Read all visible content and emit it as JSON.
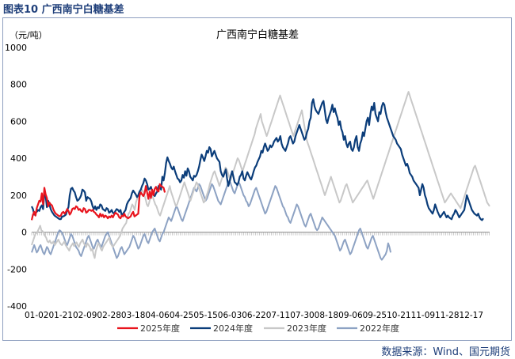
{
  "figure_label": "图表10  广西南宁白糖基差",
  "source_note": "数据来源：Wind、国元期货",
  "colors": {
    "caption": "#1f3f7a",
    "frame": "#8e9fbf",
    "axis": "#888888",
    "tick_text": "#000000"
  },
  "chart_data": {
    "type": "line",
    "title": "广西南宁白糖基差",
    "ylabel": "（元/吨）",
    "xlabel": "",
    "ylim": [
      -400,
      1000
    ],
    "yticks": [
      -400,
      -200,
      0,
      200,
      400,
      600,
      800,
      1000
    ],
    "x_tick_labels": [
      "01-02",
      "01-21",
      "02-09",
      "02-28",
      "03-18",
      "04-06",
      "04-25",
      "05-15",
      "06-03",
      "06-22",
      "07-11",
      "07-30",
      "08-18",
      "09-06",
      "09-25",
      "10-21",
      "11-09",
      "11-28",
      "12-17"
    ],
    "x_tick_text": "01-0201-2102-0902-2803-1804-0604-2505-1506-0306-2207-1107-3008-1809-0609-2510-2111-0911-2812-17",
    "grid": false,
    "legend_position": "bottom",
    "series": [
      {
        "name": "2025年度",
        "color": "#e8141d",
        "width": 2.2,
        "values": [
          65,
          95,
          110,
          90,
          130,
          150,
          170,
          165,
          210,
          150,
          240,
          205,
          185,
          140,
          160,
          150,
          145,
          125,
          110,
          100,
          95,
          90,
          85,
          90,
          105,
          110,
          100,
          110,
          125,
          115,
          95,
          105,
          125,
          130,
          125,
          140,
          135,
          120,
          125,
          115,
          110,
          130,
          125,
          105,
          110,
          120,
          120,
          115,
          120,
          110,
          105,
          95,
          90,
          80,
          100,
          85,
          95,
          80,
          90,
          85,
          75,
          85,
          80,
          90,
          80,
          95,
          105,
          100,
          95,
          80,
          75,
          90,
          85,
          100,
          85,
          80,
          75,
          80,
          85,
          100,
          110,
          85,
          90,
          95,
          100,
          200,
          215,
          205,
          195,
          210,
          250,
          215,
          180,
          220,
          185,
          230,
          200,
          235,
          245,
          225,
          220,
          260,
          250,
          245,
          240,
          215
        ]
      },
      {
        "name": "2024年度",
        "color": "#0b3d7a",
        "width": 2.2,
        "values": [
          140,
          125,
          95,
          105,
          110,
          120,
          115,
          135,
          145,
          125,
          210,
          195,
          135,
          170,
          150,
          125,
          110,
          100,
          90,
          85,
          80,
          75,
          70,
          70,
          85,
          85,
          90,
          95,
          120,
          135,
          200,
          235,
          240,
          225,
          215,
          190,
          170,
          175,
          185,
          200,
          230,
          225,
          215,
          170,
          190,
          185,
          180,
          165,
          140,
          125,
          140,
          120,
          135,
          130,
          150,
          145,
          125,
          120,
          115,
          130,
          125,
          105,
          110,
          120,
          105,
          100,
          115,
          125,
          120,
          110,
          120,
          90,
          100,
          110,
          120,
          150,
          165,
          175,
          185,
          210,
          225,
          215,
          205,
          190,
          200,
          220,
          230,
          250,
          265,
          290,
          280,
          260,
          230,
          235,
          245,
          220,
          205,
          195,
          210,
          220,
          250,
          240,
          230,
          300,
          280,
          320,
          375,
          405,
          385,
          370,
          350,
          340,
          355,
          330,
          310,
          290,
          285,
          270,
          280,
          310,
          295,
          330,
          305,
          345,
          330,
          300,
          290,
          280,
          305,
          300,
          310,
          330,
          355,
          390,
          420,
          405,
          385,
          410,
          440,
          430,
          460,
          450,
          410,
          425,
          440,
          420,
          400,
          390,
          380,
          330,
          310,
          300,
          320,
          340,
          290,
          250,
          275,
          305,
          330,
          300,
          270,
          265,
          255,
          270,
          300,
          310,
          330,
          290,
          280,
          305,
          325,
          310,
          295,
          285,
          305,
          330,
          350,
          360,
          380,
          395,
          410,
          440,
          430,
          460,
          480,
          460,
          440,
          450,
          470,
          460,
          470,
          490,
          500,
          510,
          490,
          500,
          520,
          480,
          460,
          450,
          440,
          460,
          480,
          510,
          520,
          500,
          480,
          490,
          520,
          540,
          560,
          580,
          560,
          540,
          520,
          500,
          510,
          540,
          560,
          600,
          620,
          700,
          720,
          680,
          660,
          650,
          640,
          660,
          680,
          700,
          710,
          660,
          610,
          590,
          620,
          640,
          660,
          690,
          650,
          670,
          640,
          620,
          580,
          600,
          560,
          540,
          500,
          520,
          480,
          460,
          480,
          490,
          450,
          440,
          460,
          500,
          520,
          460,
          440,
          480,
          500,
          540,
          520,
          560,
          600,
          620,
          580,
          640,
          680,
          660,
          700,
          640,
          620,
          600,
          650,
          640,
          680,
          700,
          690,
          650,
          620,
          600,
          580,
          560,
          540,
          520,
          510,
          500,
          480,
          470,
          460,
          450,
          420,
          400,
          380,
          360,
          370,
          350,
          320,
          310,
          300,
          280,
          270,
          260,
          250,
          240,
          200,
          230,
          260,
          240,
          200,
          180,
          150,
          130,
          120,
          110,
          100,
          120,
          150,
          130,
          110,
          95,
          80,
          90,
          100,
          110,
          95,
          80,
          90,
          80,
          75,
          70,
          90,
          100,
          120,
          110,
          95,
          80,
          90,
          100,
          110,
          120,
          160,
          200,
          180,
          160,
          140,
          120,
          110,
          100,
          95,
          90,
          100,
          80,
          70,
          65,
          75
        ]
      },
      {
        "name": "2023年度",
        "color": "#c8c8c8",
        "width": 2.0,
        "values": [
          -70,
          -50,
          -30,
          -10,
          -5,
          5,
          20,
          35,
          10,
          5,
          -5,
          -20,
          -30,
          -50,
          -55,
          -45,
          -60,
          -60,
          -50,
          -70,
          -60,
          -50,
          -40,
          -55,
          -65,
          -70,
          -60,
          -50,
          -70,
          -80,
          -90,
          -100,
          -80,
          -70,
          -60,
          -75,
          -65,
          -55,
          -70,
          -80,
          -60,
          -50,
          -40,
          -60,
          -70,
          -80,
          -60,
          -70,
          -80,
          -100,
          -90,
          -120,
          -140,
          -100,
          -80,
          -60,
          -70,
          -90,
          -100,
          -80,
          -70,
          -60,
          -50,
          -40,
          -30,
          -60,
          -70,
          -80,
          -70,
          -60,
          -50,
          -40,
          -30,
          -20,
          0,
          20,
          30,
          40,
          50,
          80,
          100,
          110,
          130,
          150,
          140,
          120,
          160,
          180,
          200,
          190,
          210,
          230,
          220,
          200,
          180,
          150,
          140,
          160,
          190,
          210,
          190,
          170,
          150,
          140,
          120,
          100,
          90,
          110,
          130,
          150,
          170,
          190,
          210,
          230,
          250,
          220,
          200,
          180,
          160,
          140,
          150,
          170,
          190,
          210,
          230,
          250,
          270,
          250,
          230,
          210,
          190,
          170,
          190,
          210,
          230,
          250,
          270,
          260,
          240,
          220,
          200,
          180,
          160,
          170,
          190,
          210,
          230,
          260,
          280,
          300,
          320,
          330,
          310,
          290,
          270,
          250,
          270,
          290,
          310,
          330,
          350,
          340,
          320,
          300,
          280,
          300,
          320,
          340,
          360,
          380,
          400,
          390,
          370,
          350,
          330,
          350,
          370,
          390,
          410,
          430,
          450,
          470,
          490,
          510,
          530,
          560,
          580,
          600,
          620,
          640,
          600,
          580,
          560,
          540,
          520,
          540,
          560,
          580,
          600,
          620,
          640,
          660,
          680,
          700,
          720,
          740,
          720,
          700,
          680,
          660,
          640,
          620,
          600,
          580,
          560,
          540,
          520,
          540,
          560,
          580,
          600,
          620,
          640,
          660,
          620,
          580,
          540,
          500,
          480,
          460,
          440,
          420,
          400,
          380,
          360,
          340,
          320,
          300,
          280,
          260,
          240,
          220,
          200,
          220,
          240,
          260,
          280,
          300,
          280,
          260,
          240,
          220,
          200,
          180,
          160,
          170,
          190,
          210,
          230,
          250,
          260,
          240,
          220,
          200,
          180,
          160,
          170,
          180,
          190,
          200,
          210,
          220,
          230,
          240,
          250,
          260,
          270,
          280,
          260,
          240,
          220,
          200,
          180,
          200,
          220,
          240,
          260,
          280,
          300,
          320,
          340,
          360,
          380,
          400,
          420,
          440,
          460,
          480,
          500,
          520,
          540,
          560,
          580,
          600,
          620,
          640,
          660,
          680,
          700,
          720,
          740,
          760,
          740,
          720,
          700,
          680,
          660,
          640,
          620,
          600,
          580,
          560,
          540,
          520,
          500,
          480,
          460,
          440,
          420,
          400,
          380,
          360,
          340,
          320,
          300,
          280,
          260,
          240,
          220,
          200,
          180,
          160,
          170,
          180,
          190,
          200,
          210,
          200,
          190,
          180,
          170,
          160,
          150,
          140,
          130,
          150,
          170,
          190,
          210,
          230,
          250,
          270,
          290,
          310,
          330,
          350,
          360,
          340,
          320,
          300,
          280,
          260,
          240,
          220,
          200,
          180,
          160,
          150,
          140
        ]
      },
      {
        "name": "2022年度",
        "color": "#8da2c3",
        "width": 2.0,
        "values": [
          -110,
          -90,
          -70,
          -90,
          -110,
          -100,
          -80,
          -70,
          -90,
          -110,
          -120,
          -100,
          -80,
          -90,
          -110,
          -120,
          -100,
          -80,
          -60,
          -40,
          -20,
          0,
          10,
          5,
          -5,
          -20,
          -40,
          -60,
          -70,
          -50,
          -30,
          -10,
          -20,
          -40,
          -60,
          -80,
          -90,
          -100,
          -120,
          -130,
          -110,
          -90,
          -70,
          -50,
          -30,
          -20,
          -40,
          -60,
          -80,
          -90,
          -70,
          -50,
          -40,
          -60,
          -70,
          -80,
          -60,
          -40,
          -20,
          -10,
          0,
          -20,
          -40,
          -60,
          -80,
          -100,
          -120,
          -140,
          -130,
          -110,
          -90,
          -80,
          -100,
          -120,
          -110,
          -100,
          -90,
          -80,
          -60,
          -40,
          -20,
          -30,
          -50,
          -70,
          -90,
          -80,
          -60,
          -40,
          -20,
          -10,
          -30,
          -50,
          -60,
          -40,
          -20,
          0,
          10,
          20,
          0,
          -20,
          -40,
          -50,
          -30,
          -10,
          0,
          20,
          40,
          60,
          80,
          70,
          60,
          80,
          100,
          120,
          140,
          130,
          110,
          90,
          70,
          60,
          80,
          100,
          120,
          140,
          160,
          180,
          200,
          220,
          240,
          230,
          220,
          240,
          260,
          250,
          230,
          210,
          190,
          170,
          180,
          200,
          220,
          240,
          260,
          250,
          230,
          210,
          190,
          170,
          160,
          150,
          170,
          190,
          210,
          230,
          250,
          270,
          280,
          260,
          240,
          220,
          210,
          230,
          250,
          270,
          260,
          240,
          220,
          200,
          190,
          170,
          160,
          140,
          150,
          170,
          190,
          210,
          230,
          240,
          220,
          200,
          180,
          160,
          140,
          120,
          100,
          110,
          130,
          150,
          170,
          190,
          210,
          230,
          250,
          240,
          220,
          200,
          180,
          160,
          140,
          130,
          110,
          90,
          80,
          60,
          50,
          70,
          90,
          110,
          130,
          150,
          140,
          120,
          100,
          80,
          60,
          40,
          30,
          50,
          70,
          90,
          100,
          80,
          60,
          40,
          20,
          10,
          20,
          40,
          60,
          80,
          70,
          60,
          50,
          40,
          30,
          20,
          10,
          0,
          -10,
          -20,
          -40,
          -60,
          -80,
          -100,
          -90,
          -70,
          -50,
          -40,
          -60,
          -80,
          -100,
          -120,
          -110,
          -90,
          -70,
          -50,
          -30,
          -10,
          10,
          20,
          0,
          -20,
          -40,
          -60,
          -80,
          -90,
          -70,
          -50,
          -30,
          -20,
          -40,
          -60,
          -80,
          -100,
          -120,
          -140,
          -150,
          -140,
          -130,
          -120,
          -100,
          -60,
          -80,
          -110
        ]
      }
    ]
  }
}
